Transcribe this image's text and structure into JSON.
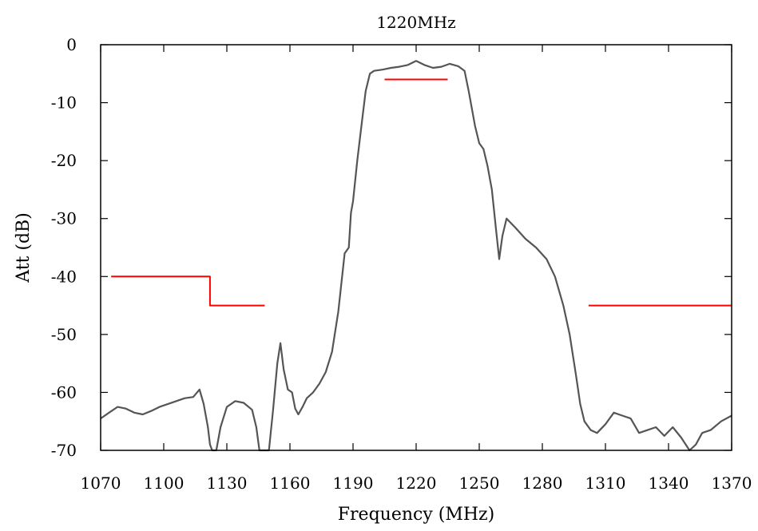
{
  "chart_data": {
    "type": "line",
    "title": "1220MHz",
    "xlabel": "Frequency (MHz)",
    "ylabel": "Att (dB)",
    "xlim": [
      1070,
      1370
    ],
    "ylim": [
      -70,
      0
    ],
    "xticks": [
      1070,
      1100,
      1130,
      1160,
      1190,
      1220,
      1250,
      1280,
      1310,
      1340,
      1370
    ],
    "yticks": [
      0,
      -10,
      -20,
      -30,
      -40,
      -50,
      -60,
      -70
    ],
    "xtick_labels": [
      "1070",
      "1100",
      "1130",
      "1160",
      "1190",
      "1220",
      "1250",
      "1280",
      "1310",
      "1340",
      "1370"
    ],
    "ytick_labels": [
      "0",
      "-10",
      "-20",
      "-30",
      "-40",
      "-50",
      "-60",
      "-70"
    ],
    "grid": false,
    "series": [
      {
        "color": "#555555",
        "x": [
          1070,
          1074,
          1078,
          1082,
          1086,
          1090,
          1094,
          1098,
          1102,
          1106,
          1110,
          1114,
          1117,
          1119,
          1121,
          1122,
          1123,
          1125,
          1127,
          1130,
          1134,
          1138,
          1142,
          1144,
          1145.5,
          1147,
          1148.5,
          1150,
          1152,
          1154,
          1155.5,
          1157,
          1159,
          1161,
          1162.5,
          1164,
          1166,
          1168,
          1171,
          1174,
          1177,
          1180,
          1183,
          1186,
          1188,
          1189,
          1190,
          1192,
          1194,
          1196,
          1198,
          1200,
          1204,
          1208,
          1212,
          1216,
          1220,
          1224,
          1228,
          1232,
          1236,
          1240,
          1243,
          1245,
          1248,
          1250,
          1252,
          1254,
          1256,
          1258,
          1259.5,
          1261,
          1263,
          1267,
          1272,
          1277,
          1282,
          1286,
          1290,
          1293,
          1296,
          1298,
          1300,
          1303,
          1306,
          1310,
          1314,
          1318,
          1322,
          1326,
          1330,
          1334,
          1338,
          1342,
          1346,
          1350,
          1353,
          1356,
          1360,
          1365,
          1370
        ],
        "y": [
          -64.5,
          -63.5,
          -62.5,
          -62.8,
          -63.5,
          -63.8,
          -63.2,
          -62.5,
          -62,
          -61.5,
          -61,
          -60.8,
          -59.5,
          -62,
          -66,
          -69,
          -70,
          -70,
          -66,
          -62.5,
          -61.5,
          -61.8,
          -63,
          -66,
          -70,
          -70,
          -70,
          -70,
          -63,
          -55,
          -51.5,
          -56,
          -59.5,
          -60,
          -62.8,
          -63.8,
          -62.5,
          -61,
          -60,
          -58.5,
          -56.5,
          -53,
          -46,
          -36,
          -35,
          -29,
          -27,
          -20,
          -14,
          -8,
          -5,
          -4.5,
          -4.3,
          -4,
          -3.8,
          -3.5,
          -2.8,
          -3.5,
          -4,
          -3.8,
          -3.3,
          -3.7,
          -4.5,
          -8,
          -14,
          -17,
          -18,
          -21,
          -25,
          -32,
          -37,
          -33,
          -30,
          -31.5,
          -33.5,
          -35,
          -37,
          -40,
          -45,
          -50,
          -57,
          -62,
          -65,
          -66.5,
          -67,
          -65.5,
          -63.5,
          -64,
          -64.5,
          -67,
          -66.5,
          -66,
          -67.5,
          -66,
          -67.8,
          -70,
          -69,
          -67,
          -66.5,
          -65,
          -64
        ]
      },
      {
        "color": "#ff0000",
        "x": [
          1075,
          1122,
          1122,
          1148
        ],
        "y": [
          -40,
          -40,
          -45,
          -45
        ]
      },
      {
        "color": "#ff0000",
        "x": [
          1205,
          1235
        ],
        "y": [
          -6,
          -6
        ]
      },
      {
        "color": "#ff0000",
        "x": [
          1302,
          1370
        ],
        "y": [
          -45,
          -45
        ]
      }
    ]
  }
}
